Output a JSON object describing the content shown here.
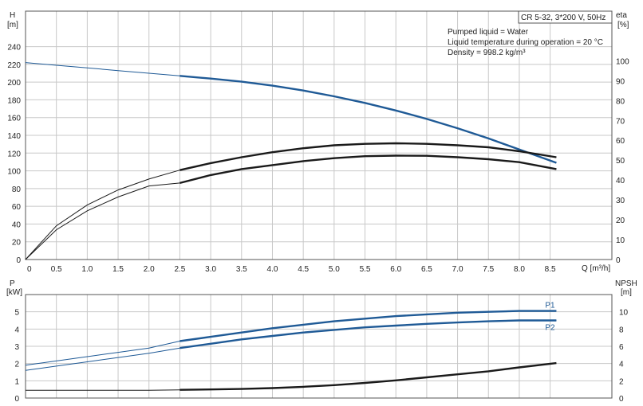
{
  "header": {
    "model": "CR 5-32, 3*200 V, 50Hz",
    "conditions": [
      "Pumped liquid = Water",
      "Liquid temperature during operation = 20 °C",
      "Density = 998.2 kg/m³"
    ]
  },
  "axes": {
    "top_left_label": "H",
    "top_left_unit": "[m]",
    "top_right_label": "eta",
    "top_right_unit": "[%]",
    "x_label": "Q [m³/h]",
    "bottom_left_label": "P",
    "bottom_left_unit": "[kW]",
    "bottom_right_label": "NPSH",
    "bottom_right_unit": "[m]"
  },
  "chart_data": [
    {
      "type": "line",
      "panel": "head-efficiency",
      "x_ticks": [
        "0",
        "0.5",
        "1.0",
        "1.5",
        "2.0",
        "2.5",
        "3.0",
        "3.5",
        "4.0",
        "4.5",
        "5.0",
        "5.5",
        "6.0",
        "6.5",
        "7.0",
        "7.5",
        "8.0",
        "8.5"
      ],
      "y_left_ticks": [
        "0",
        "20",
        "40",
        "60",
        "80",
        "100",
        "120",
        "140",
        "160",
        "180",
        "200",
        "220",
        "240"
      ],
      "y_right_ticks": [
        "0",
        "10",
        "20",
        "30",
        "40",
        "50",
        "60",
        "70",
        "80",
        "90",
        "100"
      ],
      "xlim": [
        0,
        9.5
      ],
      "ylim_left": [
        0,
        280
      ],
      "ylim_right": [
        0,
        125
      ],
      "grid": true,
      "series": [
        {
          "axis": "left",
          "color": "#1f5a96",
          "x": [
            0,
            0.5,
            1.0,
            1.5,
            2.0,
            2.5,
            3.0,
            3.5,
            4.0,
            4.5,
            5.0,
            5.5,
            6.0,
            6.5,
            7.0,
            7.5,
            8.0,
            8.6
          ],
          "y": [
            222,
            219,
            216,
            213,
            210,
            207,
            204,
            200.5,
            196,
            190.5,
            184,
            176.5,
            168,
            158.5,
            148,
            136.5,
            124,
            109
          ]
        },
        {
          "axis": "right",
          "color": "#1a1a1a",
          "x": [
            0,
            0.5,
            1.0,
            1.5,
            2.0,
            2.5,
            3.0,
            3.5,
            4.0,
            4.5,
            5.0,
            5.5,
            6.0,
            6.5,
            7.0,
            7.5,
            8.0,
            8.6
          ],
          "y": [
            0,
            17,
            27.5,
            35,
            40.5,
            45,
            48.5,
            51.5,
            54,
            56,
            57.5,
            58.2,
            58.5,
            58.2,
            57.5,
            56.5,
            54.5,
            51.5
          ]
        },
        {
          "axis": "right",
          "color": "#1a1a1a",
          "x": [
            0,
            0.5,
            1.0,
            1.5,
            2.0,
            2.5,
            3.0,
            3.5,
            4.0,
            4.5,
            5.0,
            5.5,
            6.0,
            6.5,
            7.0,
            7.5,
            8.0,
            8.6
          ],
          "y": [
            0,
            15,
            24.5,
            31.5,
            37,
            38.5,
            42.5,
            45.5,
            47.5,
            49.5,
            51,
            52,
            52.3,
            52.2,
            51.5,
            50.5,
            49,
            45.5
          ]
        }
      ]
    },
    {
      "type": "line",
      "panel": "power-npsh",
      "y_left_ticks": [
        "0",
        "1",
        "2",
        "3",
        "4",
        "5"
      ],
      "y_right_ticks": [
        "0",
        "2",
        "4",
        "6",
        "8",
        "10"
      ],
      "xlim": [
        0,
        9.5
      ],
      "ylim_left": [
        0,
        6
      ],
      "ylim_right": [
        0,
        12
      ],
      "grid": true,
      "series": [
        {
          "name": "P1",
          "axis": "left",
          "color": "#1f5a96",
          "x": [
            0,
            0.5,
            1.0,
            1.5,
            2.0,
            2.5,
            3.0,
            3.5,
            4.0,
            4.5,
            5.0,
            5.5,
            6.0,
            6.5,
            7.0,
            7.5,
            8.0,
            8.6
          ],
          "y": [
            1.9,
            2.15,
            2.4,
            2.65,
            2.9,
            3.3,
            3.55,
            3.8,
            4.05,
            4.25,
            4.45,
            4.6,
            4.75,
            4.85,
            4.95,
            5.0,
            5.05,
            5.05
          ]
        },
        {
          "name": "P2",
          "axis": "left",
          "color": "#1f5a96",
          "x": [
            0,
            0.5,
            1.0,
            1.5,
            2.0,
            2.5,
            3.0,
            3.5,
            4.0,
            4.5,
            5.0,
            5.5,
            6.0,
            6.5,
            7.0,
            7.5,
            8.0,
            8.6
          ],
          "y": [
            1.6,
            1.85,
            2.1,
            2.35,
            2.6,
            2.9,
            3.15,
            3.4,
            3.6,
            3.8,
            3.95,
            4.1,
            4.2,
            4.3,
            4.38,
            4.45,
            4.5,
            4.5
          ]
        },
        {
          "axis": "right",
          "color": "#1a1a1a",
          "x": [
            0,
            0.5,
            1.0,
            1.5,
            2.0,
            2.5,
            3.0,
            3.5,
            4.0,
            4.5,
            5.0,
            5.5,
            6.0,
            6.5,
            7.0,
            7.5,
            8.0,
            8.6
          ],
          "y": [
            0.9,
            0.9,
            0.9,
            0.9,
            0.9,
            0.95,
            1.0,
            1.05,
            1.15,
            1.3,
            1.5,
            1.75,
            2.05,
            2.4,
            2.75,
            3.1,
            3.55,
            4.05
          ]
        }
      ]
    }
  ]
}
